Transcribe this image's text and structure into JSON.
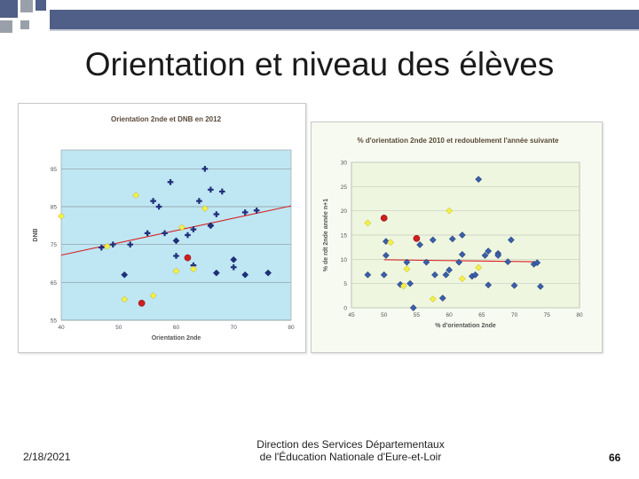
{
  "slide": {
    "title": "Orientation et niveau des élèves",
    "footer": {
      "date": "2/18/2021",
      "center_line1": "Direction des Services Départementaux",
      "center_line2": "de l'Éducation Nationale d'Eure-et-Loir",
      "page_number": "66"
    }
  },
  "colors": {
    "accent_bar": "#4f5f87",
    "accent_grey": "#9aa0aa",
    "chart1_bg": "#bfe6f3",
    "chart2_bg": "#eff6df",
    "blue_marker": "#3a5fa8",
    "navy_marker": "#1f2f7a",
    "yellow_marker": "#f4f047",
    "red_marker": "#cc1f1f",
    "trend_line": "#d62020"
  },
  "chart_data": [
    {
      "type": "scatter",
      "title": "Orientation 2nde et DNB en 2012",
      "xlabel": "Orientation 2nde",
      "ylabel": "DNB",
      "xlim": [
        40,
        80
      ],
      "ylim": [
        55,
        100
      ],
      "xticks": [
        "40",
        "50",
        "60",
        "70",
        "80"
      ],
      "yticks": [
        "55",
        "65",
        "75",
        "85",
        "95"
      ],
      "grid": true,
      "series": [
        {
          "marker": "cross",
          "color": "navy",
          "points": [
            [
              47,
              74.2
            ],
            [
              49,
              75
            ],
            [
              52,
              75
            ],
            [
              55,
              78
            ],
            [
              56,
              86.5
            ],
            [
              57,
              85
            ],
            [
              58,
              78
            ],
            [
              59,
              91.5
            ],
            [
              60,
              72
            ],
            [
              62,
              77.5
            ],
            [
              63,
              79
            ],
            [
              64,
              86.5
            ],
            [
              65,
              95
            ],
            [
              66,
              89.5
            ],
            [
              67,
              83
            ],
            [
              66,
              80
            ],
            [
              68,
              89
            ],
            [
              70,
              69
            ],
            [
              72,
              83.5
            ],
            [
              74,
              84
            ],
            [
              63,
              69.5
            ]
          ]
        },
        {
          "marker": "diamond",
          "color": "navy",
          "points": [
            [
              51,
              67
            ],
            [
              60,
              76
            ],
            [
              66,
              80
            ],
            [
              67,
              67.5
            ],
            [
              70,
              71
            ],
            [
              72,
              67
            ],
            [
              76,
              67.5
            ]
          ]
        },
        {
          "marker": "diamond",
          "color": "yellow",
          "points": [
            [
              40,
              82.5
            ],
            [
              48,
              74.5
            ],
            [
              51,
              60.5
            ],
            [
              53,
              88
            ],
            [
              56,
              61.5
            ],
            [
              60,
              68
            ],
            [
              63,
              68.5
            ],
            [
              65,
              84.5
            ],
            [
              61,
              79.5
            ]
          ]
        },
        {
          "marker": "circle",
          "color": "red",
          "points": [
            [
              54,
              59.5
            ],
            [
              62,
              71.5
            ]
          ]
        }
      ],
      "trend": {
        "x": [
          40,
          80
        ],
        "y": [
          72.2,
          85.2
        ]
      }
    },
    {
      "type": "scatter",
      "title": "% d'orientation 2nde 2010 et redoublement l'année suivante",
      "xlabel": "% d'orientation 2nde",
      "ylabel": "% de rdt 2nde année n+1",
      "xlim": [
        45,
        80
      ],
      "ylim": [
        0,
        30
      ],
      "xticks": [
        "45",
        "50",
        "55",
        "60",
        "65",
        "70",
        "75",
        "80"
      ],
      "yticks": [
        "0",
        "5",
        "10",
        "15",
        "20",
        "25",
        "30"
      ],
      "grid": true,
      "series": [
        {
          "marker": "diamond",
          "color": "blue",
          "points": [
            [
              47.5,
              6.8
            ],
            [
              50,
              6.8
            ],
            [
              50.3,
              13.7
            ],
            [
              50.3,
              10.8
            ],
            [
              52.5,
              4.8
            ],
            [
              53.5,
              9.4
            ],
            [
              54,
              5
            ],
            [
              54.5,
              0
            ],
            [
              55.5,
              13
            ],
            [
              56.5,
              9.4
            ],
            [
              57.5,
              14
            ],
            [
              57.8,
              6.8
            ],
            [
              59,
              2
            ],
            [
              59.5,
              6.8
            ],
            [
              60,
              7.8
            ],
            [
              60.5,
              14.2
            ],
            [
              61.5,
              9.4
            ],
            [
              62,
              11
            ],
            [
              62,
              15
            ],
            [
              63.5,
              6.5
            ],
            [
              64,
              6.8
            ],
            [
              64.5,
              26.5
            ],
            [
              65.5,
              10.8
            ],
            [
              66,
              11.7
            ],
            [
              67.5,
              11.2
            ],
            [
              67.5,
              10.8
            ],
            [
              69,
              9.5
            ],
            [
              69.5,
              14
            ],
            [
              70,
              4.6
            ],
            [
              73,
              9
            ],
            [
              73.5,
              9.3
            ],
            [
              74,
              4.4
            ],
            [
              66,
              4.7
            ]
          ]
        },
        {
          "marker": "diamond",
          "color": "yellow",
          "points": [
            [
              47.5,
              17.5
            ],
            [
              51,
              13.5
            ],
            [
              53,
              4.5
            ],
            [
              53.5,
              8
            ],
            [
              57.5,
              1.8
            ],
            [
              60,
              20
            ],
            [
              62,
              6
            ],
            [
              64.5,
              8.3
            ]
          ]
        },
        {
          "marker": "circle",
          "color": "red",
          "points": [
            [
              50,
              18.5
            ],
            [
              55,
              14.3
            ]
          ]
        }
      ],
      "trend": {
        "x": [
          50,
          73
        ],
        "y": [
          9.9,
          9.5
        ]
      }
    }
  ]
}
